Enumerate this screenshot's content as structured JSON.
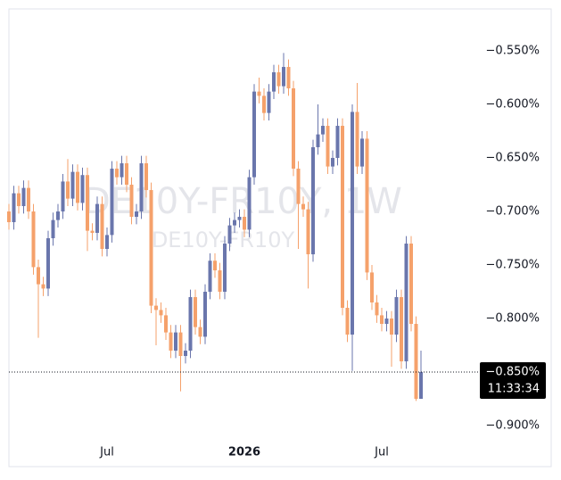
{
  "chart_data": {
    "type": "candlestick",
    "watermark": "DE10Y-FR10Y, 1W",
    "watermark_sub": "DE10Y-FR10Y",
    "categories": [
      null,
      null,
      null,
      null,
      null,
      null,
      null,
      null,
      null,
      null,
      null,
      null,
      null,
      null,
      null,
      null,
      null,
      null,
      null,
      null,
      "Jul",
      null,
      null,
      null,
      null,
      null,
      null,
      null,
      null,
      null,
      null,
      null,
      null,
      null,
      null,
      null,
      null,
      null,
      null,
      null,
      null,
      null,
      null,
      null,
      null,
      null,
      null,
      null,
      "2026",
      null,
      null,
      null,
      null,
      null,
      null,
      null,
      null,
      null,
      null,
      null,
      null,
      null,
      null,
      null,
      null,
      null,
      null,
      null,
      null,
      null,
      null,
      null,
      null,
      null,
      null,
      null,
      "Jul",
      null,
      null,
      null,
      null,
      null,
      null,
      null,
      null
    ],
    "open": [
      -0.7,
      -0.71,
      -0.683,
      -0.695,
      -0.678,
      -0.7,
      -0.752,
      -0.768,
      -0.772,
      -0.725,
      -0.708,
      -0.7,
      -0.672,
      -0.688,
      -0.663,
      -0.692,
      -0.666,
      -0.718,
      -0.72,
      -0.693,
      -0.735,
      -0.722,
      -0.66,
      -0.668,
      -0.655,
      -0.675,
      -0.705,
      -0.7,
      -0.655,
      -0.68,
      -0.788,
      -0.792,
      -0.797,
      -0.813,
      -0.83,
      -0.813,
      -0.835,
      -0.83,
      -0.78,
      -0.808,
      -0.817,
      -0.775,
      -0.746,
      -0.755,
      -0.775,
      -0.73,
      -0.713,
      -0.708,
      -0.705,
      -0.717,
      -0.668,
      -0.588,
      -0.592,
      -0.608,
      -0.588,
      -0.57,
      -0.583,
      -0.565,
      -0.585,
      -0.66,
      -0.693,
      -0.698,
      -0.74,
      -0.64,
      -0.628,
      -0.62,
      -0.658,
      -0.65,
      -0.62,
      -0.79,
      -0.815,
      -0.607,
      -0.658,
      -0.632,
      -0.757,
      -0.785,
      -0.797,
      -0.805,
      -0.8,
      -0.815,
      -0.78,
      -0.84,
      -0.73,
      -0.805,
      -0.875
    ],
    "high": [
      -0.693,
      -0.676,
      -0.676,
      -0.671,
      -0.671,
      -0.693,
      -0.745,
      -0.761,
      -0.718,
      -0.701,
      -0.693,
      -0.665,
      -0.651,
      -0.656,
      -0.656,
      -0.659,
      -0.659,
      -0.711,
      -0.686,
      -0.686,
      -0.715,
      -0.653,
      -0.653,
      -0.648,
      -0.648,
      -0.668,
      -0.693,
      -0.648,
      -0.648,
      -0.673,
      -0.781,
      -0.785,
      -0.79,
      -0.806,
      -0.806,
      -0.806,
      -0.823,
      -0.773,
      -0.773,
      -0.801,
      -0.768,
      -0.739,
      -0.739,
      -0.748,
      -0.723,
      -0.706,
      -0.701,
      -0.698,
      -0.698,
      -0.661,
      -0.581,
      -0.575,
      -0.585,
      -0.581,
      -0.563,
      -0.563,
      -0.552,
      -0.558,
      -0.578,
      -0.653,
      -0.686,
      -0.691,
      -0.633,
      -0.6,
      -0.613,
      -0.613,
      -0.643,
      -0.613,
      -0.613,
      -0.783,
      -0.6,
      -0.58,
      -0.625,
      -0.625,
      -0.75,
      -0.778,
      -0.79,
      -0.793,
      -0.793,
      -0.773,
      -0.773,
      -0.723,
      -0.723,
      -0.798,
      -0.83
    ],
    "low": [
      -0.717,
      -0.717,
      -0.702,
      -0.702,
      -0.707,
      -0.759,
      -0.818,
      -0.779,
      -0.779,
      -0.732,
      -0.715,
      -0.707,
      -0.695,
      -0.695,
      -0.699,
      -0.699,
      -0.737,
      -0.727,
      -0.727,
      -0.742,
      -0.742,
      -0.729,
      -0.675,
      -0.675,
      -0.682,
      -0.712,
      -0.712,
      -0.707,
      -0.687,
      -0.795,
      -0.825,
      -0.804,
      -0.82,
      -0.837,
      -0.837,
      -0.868,
      -0.842,
      -0.837,
      -0.815,
      -0.824,
      -0.824,
      -0.782,
      -0.762,
      -0.782,
      -0.782,
      -0.737,
      -0.72,
      -0.715,
      -0.724,
      -0.724,
      -0.675,
      -0.599,
      -0.615,
      -0.615,
      -0.595,
      -0.59,
      -0.59,
      -0.592,
      -0.667,
      -0.735,
      -0.705,
      -0.772,
      -0.747,
      -0.647,
      -0.635,
      -0.665,
      -0.665,
      -0.657,
      -0.797,
      -0.822,
      -0.849,
      -0.665,
      -0.665,
      -0.764,
      -0.792,
      -0.804,
      -0.812,
      -0.812,
      -0.845,
      -0.822,
      -0.847,
      -0.847,
      -0.812,
      -0.877,
      -0.872
    ],
    "close": [
      -0.71,
      -0.683,
      -0.695,
      -0.678,
      -0.7,
      -0.752,
      -0.768,
      -0.772,
      -0.725,
      -0.708,
      -0.7,
      -0.672,
      -0.688,
      -0.663,
      -0.692,
      -0.666,
      -0.718,
      -0.72,
      -0.693,
      -0.735,
      -0.722,
      -0.66,
      -0.668,
      -0.655,
      -0.675,
      -0.705,
      -0.7,
      -0.655,
      -0.68,
      -0.788,
      -0.792,
      -0.797,
      -0.813,
      -0.83,
      -0.813,
      -0.835,
      -0.83,
      -0.78,
      -0.808,
      -0.817,
      -0.775,
      -0.746,
      -0.755,
      -0.775,
      -0.73,
      -0.713,
      -0.708,
      -0.705,
      -0.717,
      -0.668,
      -0.588,
      -0.592,
      -0.608,
      -0.588,
      -0.57,
      -0.583,
      -0.565,
      -0.585,
      -0.66,
      -0.693,
      -0.698,
      -0.74,
      -0.64,
      -0.628,
      -0.62,
      -0.658,
      -0.65,
      -0.62,
      -0.79,
      -0.815,
      -0.607,
      -0.658,
      -0.632,
      -0.757,
      -0.785,
      -0.797,
      -0.805,
      -0.8,
      -0.815,
      -0.78,
      -0.84,
      -0.73,
      -0.805,
      -0.875,
      -0.85
    ],
    "up_color": "#6a76ac",
    "down_color": "#f5a16b",
    "ylim": [
      -0.9375,
      -0.5108
    ],
    "yticks": [
      {
        "value": -0.55,
        "label": "−0.550%"
      },
      {
        "value": -0.6,
        "label": "−0.600%"
      },
      {
        "value": -0.65,
        "label": "−0.650%"
      },
      {
        "value": -0.7,
        "label": "−0.700%"
      },
      {
        "value": -0.75,
        "label": "−0.750%"
      },
      {
        "value": -0.8,
        "label": "−0.800%"
      },
      {
        "value": -0.85,
        "label": "−0.850%"
      },
      {
        "value": -0.9,
        "label": "−0.900%"
      }
    ],
    "last_price": {
      "value": -0.85,
      "label": "−0.850%"
    },
    "countdown": "11:33:34",
    "grid": false
  }
}
